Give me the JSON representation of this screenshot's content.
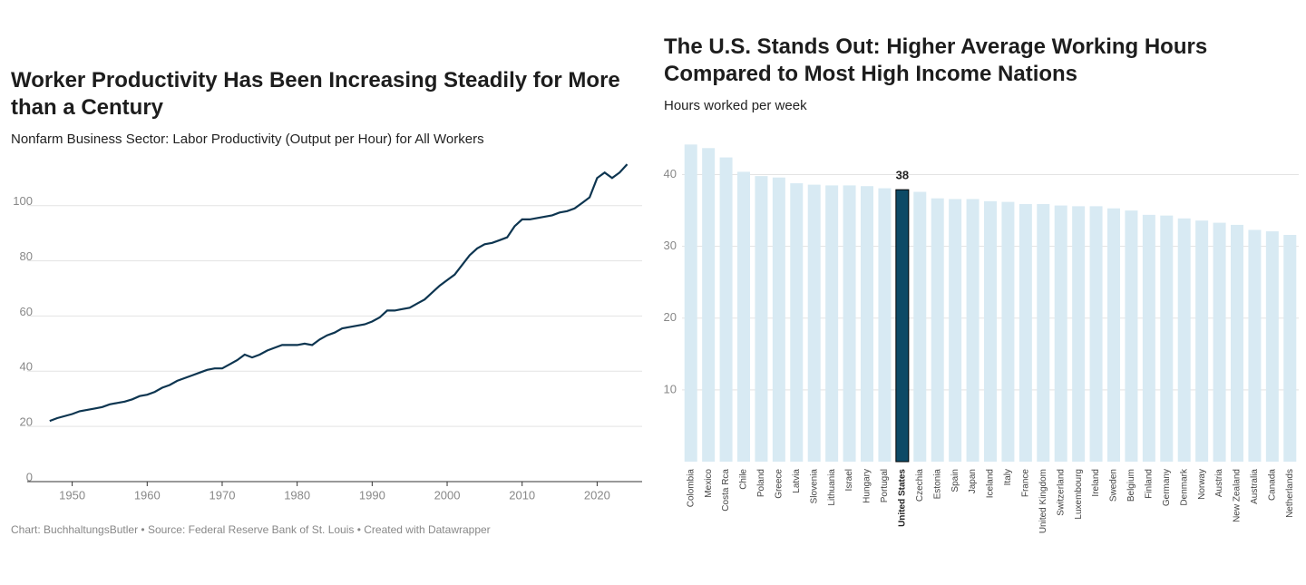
{
  "chart_data": [
    {
      "type": "line",
      "title": "Worker Productivity Has Been Increasing Steadily for More than a Century",
      "subtitle": "Nonfarm Business Sector: Labor Productivity (Output per Hour) for All Workers",
      "source": "Chart: BuchhaltungsButler • Source: Federal Reserve Bank of St. Louis • Created with Datawrapper",
      "color": "#0d3550",
      "grid": true,
      "x": [
        1947,
        1948,
        1950,
        1951,
        1952,
        1953,
        1954,
        1955,
        1956,
        1957,
        1958,
        1959,
        1960,
        1961,
        1962,
        1963,
        1964,
        1965,
        1966,
        1967,
        1968,
        1969,
        1970,
        1971,
        1972,
        1973,
        1974,
        1975,
        1976,
        1977,
        1978,
        1979,
        1980,
        1981,
        1982,
        1983,
        1984,
        1985,
        1986,
        1987,
        1988,
        1989,
        1990,
        1991,
        1992,
        1993,
        1994,
        1995,
        1996,
        1997,
        1998,
        1999,
        2000,
        2001,
        2002,
        2003,
        2004,
        2005,
        2006,
        2007,
        2008,
        2009,
        2010,
        2011,
        2012,
        2013,
        2014,
        2015,
        2016,
        2017,
        2018,
        2019,
        2020,
        2021,
        2022,
        2023,
        2024
      ],
      "values": [
        22,
        23,
        24.5,
        25.5,
        26,
        26.5,
        27,
        28,
        28.5,
        29,
        29.8,
        31,
        31.5,
        32.5,
        34,
        35,
        36.5,
        37.5,
        38.5,
        39.5,
        40.5,
        41,
        41,
        42.5,
        44,
        46,
        45,
        46,
        47.5,
        48.5,
        49.5,
        49.5,
        49.5,
        50,
        49.5,
        51.5,
        53,
        54,
        55.5,
        56,
        56.5,
        57,
        58,
        59.5,
        62,
        62,
        62.5,
        63,
        64.5,
        66,
        68.5,
        71,
        73,
        75,
        78.5,
        82,
        84.5,
        86,
        86.5,
        87.5,
        88.5,
        92.5,
        95,
        95,
        95.5,
        96,
        96.5,
        97.5,
        98,
        99,
        101,
        103,
        110,
        112,
        110,
        112,
        115
      ],
      "xlim": [
        1944,
        2026
      ],
      "xticks": [
        1950,
        1960,
        1970,
        1980,
        1990,
        2000,
        2010,
        2020
      ],
      "ylim": [
        0,
        117
      ],
      "yticks": [
        0,
        20,
        40,
        60,
        80,
        100
      ]
    },
    {
      "type": "bar",
      "title": "The U.S. Stands Out: Higher Average Working Hours Compared to Most High Income Nations",
      "subtitle": "Hours worked per week",
      "grid": true,
      "categories": [
        "Colombia",
        "Mexico",
        "Costa Rca",
        "Chile",
        "Poland",
        "Greece",
        "Latvia",
        "Slovenia",
        "Lithuania",
        "Israel",
        "Hungary",
        "Portugal",
        "United States",
        "Czechia",
        "Estonia",
        "Spain",
        "Japan",
        "Iceland",
        "Italy",
        "France",
        "United Kingdom",
        "Switzerland",
        "Luxembourg",
        "Ireland",
        "Sweden",
        "Belgium",
        "Finland",
        "Germany",
        "Denmark",
        "Norway",
        "Austria",
        "New Zealand",
        "Australia",
        "Canada",
        "Netherlands"
      ],
      "values": [
        44.2,
        43.7,
        42.4,
        40.4,
        39.8,
        39.6,
        38.8,
        38.6,
        38.5,
        38.5,
        38.4,
        38.1,
        37.9,
        37.6,
        36.7,
        36.6,
        36.6,
        36.3,
        36.2,
        35.9,
        35.9,
        35.7,
        35.6,
        35.6,
        35.3,
        35.0,
        34.4,
        34.3,
        33.9,
        33.6,
        33.3,
        33.0,
        32.3,
        32.1,
        31.6
      ],
      "value_labels": [
        null,
        null,
        null,
        null,
        null,
        null,
        null,
        null,
        null,
        null,
        null,
        null,
        "38",
        null,
        null,
        null,
        null,
        null,
        null,
        null,
        null,
        null,
        null,
        null,
        null,
        null,
        null,
        null,
        null,
        null,
        null,
        null,
        null,
        null,
        null
      ],
      "colors": [
        "#d8eaf3",
        "#d8eaf3",
        "#d8eaf3",
        "#d8eaf3",
        "#d8eaf3",
        "#d8eaf3",
        "#d8eaf3",
        "#d8eaf3",
        "#d8eaf3",
        "#d8eaf3",
        "#d8eaf3",
        "#d8eaf3",
        "#0d4a66",
        "#d8eaf3",
        "#d8eaf3",
        "#d8eaf3",
        "#d8eaf3",
        "#d8eaf3",
        "#d8eaf3",
        "#d8eaf3",
        "#d8eaf3",
        "#d8eaf3",
        "#d8eaf3",
        "#d8eaf3",
        "#d8eaf3",
        "#d8eaf3",
        "#d8eaf3",
        "#d8eaf3",
        "#d8eaf3",
        "#d8eaf3",
        "#d8eaf3",
        "#d8eaf3",
        "#d8eaf3",
        "#d8eaf3",
        "#d8eaf3"
      ],
      "ylim": [
        0,
        45
      ],
      "yticks": [
        10,
        20,
        30,
        40
      ]
    }
  ]
}
